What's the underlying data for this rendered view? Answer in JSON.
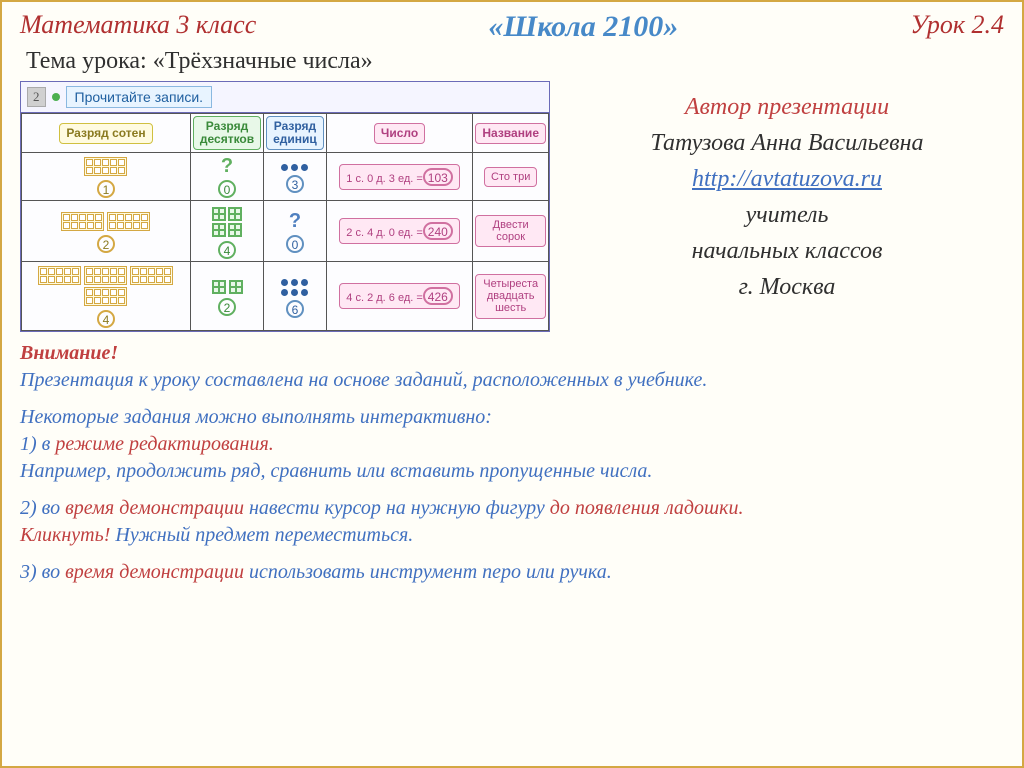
{
  "header": {
    "left": "Математика  3 класс",
    "center": "«Школа 2100»",
    "right": "Урок 2.4"
  },
  "topic": "Тема урока: «Трёхзначные числа»",
  "task": {
    "num": "2",
    "text": "Прочитайте записи."
  },
  "cols": {
    "c1": "Разряд сотен",
    "c2": "Разряд десятков",
    "c3": "Разряд единиц",
    "c4": "Число",
    "c5": "Название"
  },
  "rows": [
    {
      "h": "1",
      "t": "0",
      "u": "3",
      "expr": "1 с. 0 д. 3 ед. =",
      "num": "103",
      "name": "Сто три",
      "tQ": true,
      "uQ": false
    },
    {
      "h": "2",
      "t": "4",
      "u": "0",
      "expr": "2 с. 4 д. 0 ед. =",
      "num": "240",
      "name": "Двести сорок",
      "tQ": false,
      "uQ": true
    },
    {
      "h": "4",
      "t": "2",
      "u": "6",
      "expr": "4 с. 2 д. 6 ед. =",
      "num": "426",
      "name": "Четыреста двадцать шесть",
      "tQ": false,
      "uQ": false
    }
  ],
  "author": {
    "l1": "Автор презентации",
    "l2": "Татузова Анна Васильевна",
    "link": "http://avtatuzova.ru",
    "l3": "учитель",
    "l4": "начальных классов",
    "l5": "г. Москва"
  },
  "notes": {
    "attn": "Внимание!",
    "p1": "Презентация к уроку составлена на основе заданий, расположенных в учебнике.",
    "p2a": "Некоторые задания можно выполнять интерактивно:",
    "p2b": "1) в ",
    "p2c": "режиме редактирования.",
    "p2d": "Например, продолжить ряд, сравнить или вставить пропущенные числа.",
    "p3a": "2) во ",
    "p3b": "время демонстрации",
    "p3c": " навести курсор на  нужную фигуру ",
    "p3d": "до появления ладошки.",
    "p3e": "Кликнуть!",
    "p3f": " Нужный предмет переместиться.",
    "p4a": "3) во ",
    "p4b": "время демонстрации",
    "p4c": " использовать инструмент перо или ручка."
  },
  "colors": {
    "border": "#d4a843",
    "red": "#c04040",
    "blue": "#4070c0",
    "pill_yellow_bg": "#fffbe0",
    "pill_green_bg": "#e8f8e8",
    "pill_blue_bg": "#e8f4ff",
    "pill_pink_bg": "#ffe8f4"
  }
}
